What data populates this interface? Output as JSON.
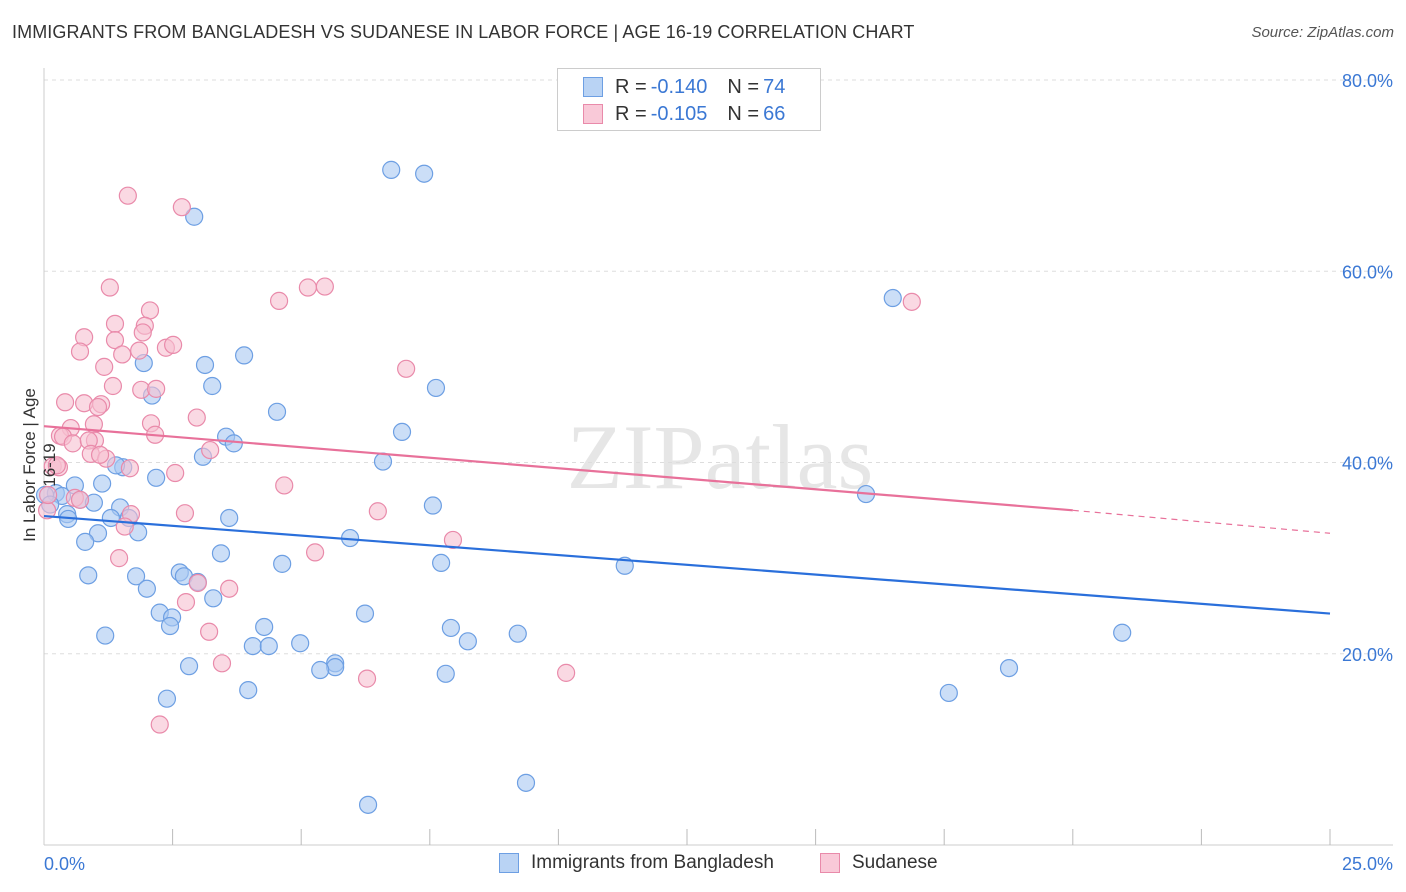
{
  "title": "IMMIGRANTS FROM BANGLADESH VS SUDANESE IN LABOR FORCE | AGE 16-19 CORRELATION CHART",
  "source": "Source: ZipAtlas.com",
  "watermark": "ZIPatlas",
  "legend_stats": [
    {
      "r_label": "R = ",
      "r": "-0.140",
      "n_label": "N = ",
      "n": "74"
    },
    {
      "r_label": "R = ",
      "r": "-0.105",
      "n_label": "N = ",
      "n": "66"
    }
  ],
  "chart_data": {
    "type": "scatter",
    "title": "IMMIGRANTS FROM BANGLADESH VS SUDANESE IN LABOR FORCE | AGE 16-19 CORRELATION CHART",
    "xlabel": "",
    "ylabel": "In Labor Force | Age 16-19",
    "xlim": [
      0,
      25
    ],
    "ylim": [
      0,
      80
    ],
    "x_tick_labels": [
      "0.0%",
      "25.0%"
    ],
    "y_ticks": [
      20,
      40,
      60,
      80
    ],
    "y_tick_labels": [
      "20.0%",
      "40.0%",
      "60.0%",
      "80.0%"
    ],
    "grid": true,
    "legend_position": "bottom",
    "series": [
      {
        "name": "Immigrants from Bangladesh",
        "color": "#a9c8f2",
        "stroke": "#6d9fe3",
        "line_color": "#2a6fdb",
        "trend": {
          "x": [
            0,
            25
          ],
          "y": [
            34.4,
            24.2
          ]
        },
        "points": [
          [
            6.75,
            70.6
          ],
          [
            7.39,
            70.2
          ],
          [
            2.92,
            65.7
          ],
          [
            16.5,
            57.2
          ],
          [
            3.89,
            51.2
          ],
          [
            3.13,
            50.2
          ],
          [
            1.94,
            50.4
          ],
          [
            3.27,
            48.0
          ],
          [
            7.62,
            47.8
          ],
          [
            2.1,
            47.0
          ],
          [
            4.53,
            45.3
          ],
          [
            6.96,
            43.2
          ],
          [
            3.54,
            42.7
          ],
          [
            3.69,
            42.0
          ],
          [
            3.09,
            40.6
          ],
          [
            6.59,
            40.1
          ],
          [
            1.54,
            39.5
          ],
          [
            1.4,
            39.7
          ],
          [
            2.18,
            38.4
          ],
          [
            15.98,
            36.7
          ],
          [
            0.23,
            36.8
          ],
          [
            0.35,
            36.5
          ],
          [
            0.6,
            37.6
          ],
          [
            1.13,
            37.8
          ],
          [
            0.7,
            36.1
          ],
          [
            0.97,
            35.8
          ],
          [
            7.56,
            35.5
          ],
          [
            1.48,
            35.3
          ],
          [
            0.45,
            34.6
          ],
          [
            0.47,
            34.1
          ],
          [
            1.3,
            34.2
          ],
          [
            1.65,
            34.2
          ],
          [
            3.6,
            34.2
          ],
          [
            1.83,
            32.7
          ],
          [
            1.05,
            32.6
          ],
          [
            0.8,
            31.7
          ],
          [
            5.95,
            32.1
          ],
          [
            3.44,
            30.5
          ],
          [
            7.72,
            29.5
          ],
          [
            4.63,
            29.4
          ],
          [
            11.29,
            29.2
          ],
          [
            0.86,
            28.2
          ],
          [
            1.79,
            28.1
          ],
          [
            2.64,
            28.5
          ],
          [
            2.72,
            28.1
          ],
          [
            2.99,
            27.5
          ],
          [
            2.0,
            26.8
          ],
          [
            3.29,
            25.8
          ],
          [
            2.25,
            24.3
          ],
          [
            2.49,
            23.8
          ],
          [
            2.45,
            22.9
          ],
          [
            6.24,
            24.2
          ],
          [
            4.28,
            22.8
          ],
          [
            7.91,
            22.7
          ],
          [
            1.19,
            21.9
          ],
          [
            9.21,
            22.1
          ],
          [
            20.96,
            22.2
          ],
          [
            8.24,
            21.3
          ],
          [
            4.98,
            21.1
          ],
          [
            4.06,
            20.8
          ],
          [
            4.37,
            20.8
          ],
          [
            2.82,
            18.7
          ],
          [
            5.66,
            19.0
          ],
          [
            5.66,
            18.6
          ],
          [
            5.37,
            18.3
          ],
          [
            18.76,
            18.5
          ],
          [
            7.81,
            17.9
          ],
          [
            3.97,
            16.2
          ],
          [
            17.59,
            15.9
          ],
          [
            2.39,
            15.3
          ],
          [
            9.37,
            6.5
          ],
          [
            6.3,
            4.2
          ],
          [
            0.02,
            36.6
          ],
          [
            0.12,
            35.6
          ]
        ]
      },
      {
        "name": "Sudanese",
        "color": "#f7c0d1",
        "stroke": "#e98aaa",
        "line_color": "#e8719a",
        "trend": {
          "x": [
            0,
            20
          ],
          "y": [
            43.8,
            35.0
          ],
          "dashed_x": [
            20,
            25
          ],
          "dashed_y": [
            35.0,
            32.6
          ]
        },
        "points": [
          [
            1.63,
            67.9
          ],
          [
            2.68,
            66.7
          ],
          [
            1.28,
            58.3
          ],
          [
            5.13,
            58.3
          ],
          [
            5.46,
            58.4
          ],
          [
            4.57,
            56.9
          ],
          [
            16.87,
            56.8
          ],
          [
            2.06,
            55.9
          ],
          [
            1.96,
            54.3
          ],
          [
            1.38,
            54.5
          ],
          [
            1.92,
            53.6
          ],
          [
            0.78,
            53.1
          ],
          [
            1.38,
            52.8
          ],
          [
            0.7,
            51.6
          ],
          [
            2.37,
            52.0
          ],
          [
            2.51,
            52.3
          ],
          [
            1.52,
            51.3
          ],
          [
            1.85,
            51.7
          ],
          [
            1.17,
            50.0
          ],
          [
            7.04,
            49.8
          ],
          [
            1.34,
            48.0
          ],
          [
            1.89,
            47.6
          ],
          [
            2.18,
            47.7
          ],
          [
            0.41,
            46.3
          ],
          [
            0.78,
            46.2
          ],
          [
            1.11,
            46.1
          ],
          [
            1.05,
            45.8
          ],
          [
            2.97,
            44.7
          ],
          [
            2.08,
            44.1
          ],
          [
            0.97,
            44.0
          ],
          [
            0.52,
            43.6
          ],
          [
            2.16,
            42.9
          ],
          [
            0.31,
            42.8
          ],
          [
            0.37,
            42.7
          ],
          [
            0.56,
            42.0
          ],
          [
            0.99,
            42.3
          ],
          [
            0.87,
            42.3
          ],
          [
            3.23,
            41.3
          ],
          [
            0.91,
            40.9
          ],
          [
            1.21,
            40.4
          ],
          [
            0.17,
            39.6
          ],
          [
            0.29,
            39.5
          ],
          [
            1.67,
            39.4
          ],
          [
            2.55,
            38.9
          ],
          [
            4.67,
            37.6
          ],
          [
            0.6,
            36.3
          ],
          [
            1.69,
            34.6
          ],
          [
            2.74,
            34.7
          ],
          [
            6.49,
            34.9
          ],
          [
            1.57,
            33.3
          ],
          [
            7.95,
            31.9
          ],
          [
            5.27,
            30.6
          ],
          [
            1.46,
            30.0
          ],
          [
            2.99,
            27.4
          ],
          [
            3.6,
            26.8
          ],
          [
            2.76,
            25.4
          ],
          [
            3.21,
            22.3
          ],
          [
            3.46,
            19.0
          ],
          [
            6.28,
            17.4
          ],
          [
            10.15,
            18.0
          ],
          [
            2.25,
            12.6
          ],
          [
            0.25,
            39.7
          ],
          [
            0.06,
            35.0
          ],
          [
            0.08,
            36.6
          ],
          [
            1.09,
            40.8
          ],
          [
            0.7,
            36.1
          ]
        ]
      }
    ]
  }
}
